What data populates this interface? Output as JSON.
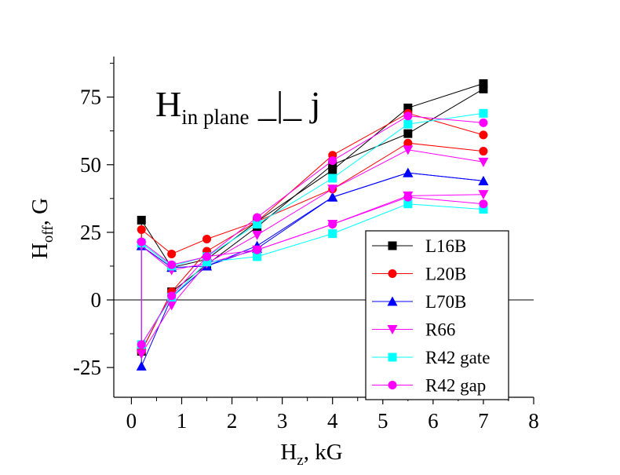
{
  "chart_data": {
    "type": "line",
    "xlabel": {
      "main": "H",
      "sub": "z",
      "rest": ", kG"
    },
    "ylabel": {
      "main": "H",
      "sub": "off",
      "rest": ", G"
    },
    "annotation": {
      "main": "H",
      "sub": "in plane",
      "rest": " _|_ j"
    },
    "xlim": [
      -0.35,
      8
    ],
    "ylim": [
      -36,
      90
    ],
    "xticks": [
      0,
      1,
      2,
      3,
      4,
      5,
      6,
      7,
      8
    ],
    "yticks": [
      -25,
      0,
      25,
      50,
      75
    ],
    "xtick_labels": [
      "0",
      "1",
      "2",
      "3",
      "4",
      "5",
      "6",
      "7",
      "8"
    ],
    "ytick_labels": [
      "-25",
      "0",
      "25",
      "50",
      "75"
    ],
    "zero_line": true,
    "legend_position": "lower-right",
    "series": [
      {
        "name": "L16B",
        "color": "#000000",
        "marker": "square",
        "branches": [
          [
            [
              0.2,
              29.5
            ],
            [
              0.8,
              12
            ],
            [
              1.5,
              15
            ],
            [
              2.5,
              29
            ],
            [
              4,
              48
            ],
            [
              5.5,
              71
            ],
            [
              7,
              80
            ]
          ],
          [
            [
              0.2,
              -19
            ],
            [
              0.8,
              3
            ],
            [
              1.5,
              13
            ],
            [
              2.5,
              27
            ],
            [
              4,
              50
            ],
            [
              5.5,
              61.5
            ],
            [
              7,
              78
            ]
          ]
        ]
      },
      {
        "name": "L20B",
        "color": "#ff0000",
        "marker": "circle",
        "branches": [
          [
            [
              0.2,
              26
            ],
            [
              0.8,
              17
            ],
            [
              1.5,
              22.5
            ],
            [
              2.5,
              29
            ],
            [
              4,
              53.5
            ],
            [
              5.5,
              69
            ],
            [
              7,
              61
            ]
          ],
          [
            [
              0.2,
              -19
            ],
            [
              0.8,
              3
            ],
            [
              1.5,
              18
            ],
            [
              2.5,
              29
            ],
            [
              4,
              41
            ],
            [
              5.5,
              58
            ],
            [
              7,
              55
            ]
          ]
        ]
      },
      {
        "name": "L70B",
        "color": "#0000ff",
        "marker": "triangle-up",
        "branches": [
          [
            [
              0.2,
              20
            ],
            [
              0.8,
              12
            ],
            [
              1.5,
              12.5
            ],
            [
              2.5,
              20
            ],
            [
              4,
              38
            ],
            [
              5.5,
              47
            ],
            [
              7,
              44
            ]
          ],
          [
            [
              0.2,
              -24.5
            ],
            [
              0.8,
              1
            ],
            [
              1.5,
              12.5
            ],
            [
              2.5,
              19
            ],
            [
              4,
              38
            ],
            [
              5.5,
              47
            ],
            [
              7,
              44
            ]
          ]
        ]
      },
      {
        "name": "R66",
        "color": "#ff00ff",
        "marker": "triangle-down",
        "branches": [
          [
            [
              0.2,
              20
            ],
            [
              0.8,
              11
            ],
            [
              1.5,
              13.5
            ],
            [
              2.5,
              24
            ],
            [
              4,
              41
            ],
            [
              5.5,
              55.5
            ],
            [
              7,
              51
            ]
          ],
          [
            [
              0.2,
              -20
            ],
            [
              0.8,
              -2
            ],
            [
              1.5,
              13.5
            ],
            [
              2.5,
              18.5
            ],
            [
              4,
              28
            ],
            [
              5.5,
              38.5
            ],
            [
              7,
              39
            ]
          ]
        ]
      },
      {
        "name": "R42 gate",
        "color": "#00ffff",
        "marker": "square",
        "branches": [
          [
            [
              0.2,
              21
            ],
            [
              0.8,
              12.5
            ],
            [
              1.5,
              16
            ],
            [
              2.5,
              28
            ],
            [
              4,
              45
            ],
            [
              5.5,
              65
            ],
            [
              7,
              69
            ]
          ],
          [
            [
              0.2,
              -16.5
            ],
            [
              0.8,
              1
            ],
            [
              1.5,
              14
            ],
            [
              2.5,
              16
            ],
            [
              4,
              24.5
            ],
            [
              5.5,
              35.5
            ],
            [
              7,
              33.5
            ]
          ]
        ]
      },
      {
        "name": "R42 gap",
        "color": "#ff00ff",
        "marker": "circle",
        "branches": [
          [
            [
              0.2,
              21.5
            ],
            [
              0.8,
              13
            ],
            [
              1.5,
              16
            ],
            [
              2.5,
              30.5
            ],
            [
              4,
              51.5
            ],
            [
              5.5,
              68
            ],
            [
              7,
              65.5
            ]
          ],
          [
            [
              0.2,
              -16.5
            ],
            [
              0.8,
              1.5
            ],
            [
              1.5,
              16
            ],
            [
              2.5,
              18.5
            ],
            [
              4,
              28
            ],
            [
              5.5,
              38
            ],
            [
              7,
              35.5
            ]
          ]
        ]
      }
    ]
  }
}
